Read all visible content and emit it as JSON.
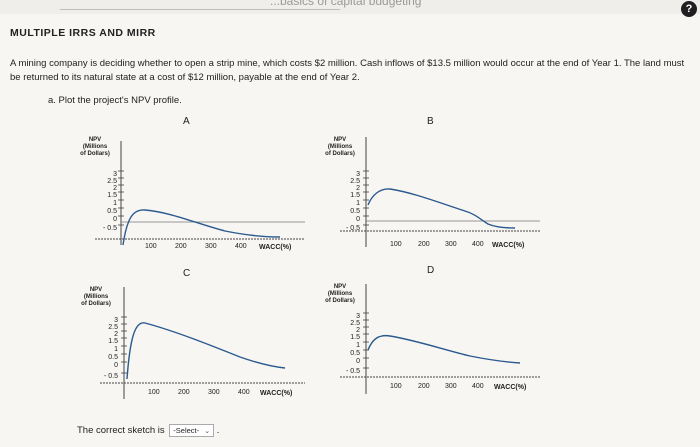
{
  "header": {
    "faint_title": "...basics of capital budgeting",
    "help_icon": "help-icon"
  },
  "section_title": "MULTIPLE IRRS AND MIRR",
  "problem_text": "A mining company is deciding whether to open a strip mine, which costs $2 million. Cash inflows of $13.5 million would occur at the end of Year 1. The land must be returned to its natural state at a cost of $12 million, payable at the end of Year 2.",
  "part_a": "a. Plot the project's NPV profile.",
  "panels": [
    {
      "letter": "A",
      "ylabel": [
        "NPV",
        "(Millions",
        "of Dollars)"
      ]
    },
    {
      "letter": "B",
      "ylabel": [
        "NPV",
        "(Millions",
        "of Dollars)"
      ]
    },
    {
      "letter": "C",
      "ylabel": [
        "NPV",
        "(Millions",
        "of Dollars)"
      ]
    },
    {
      "letter": "D",
      "ylabel": [
        "NPV",
        "(Millions",
        "of Dollars)"
      ]
    }
  ],
  "y_ticks": [
    "3",
    "2.5",
    "2",
    "1.5",
    "1",
    "0.5",
    "0",
    "- 0.5"
  ],
  "x_ticks": [
    "100",
    "200",
    "300",
    "400"
  ],
  "x_axis_label": "WACC(%)",
  "answer": {
    "prompt": "The correct sketch is",
    "select_value": "-Select-"
  }
}
